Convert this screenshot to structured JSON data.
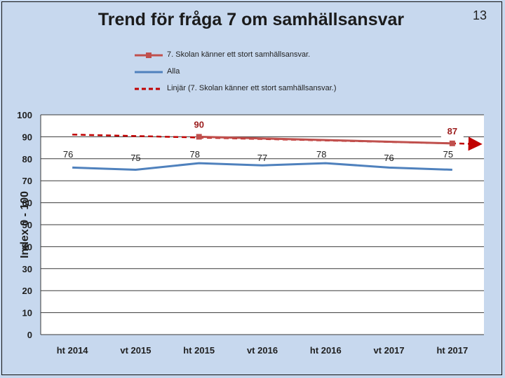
{
  "slide": {
    "title": "Trend för fråga 7 om samhällsansvar",
    "page_number": "13"
  },
  "colors": {
    "school": "#c0504d",
    "average": "#4f81bd",
    "trend": "#c00000"
  },
  "legend": [
    {
      "key": "school",
      "label": "7.   Skolan känner ett stort samhällsansvar."
    },
    {
      "key": "average",
      "label": "Alla"
    },
    {
      "key": "trend",
      "label": "Linjär (7.   Skolan känner ett stort samhällsansvar.)"
    }
  ],
  "chart_data": {
    "type": "line",
    "title": "Trend för fråga 7 om samhällsansvar",
    "xlabel": "",
    "ylabel": "Index 0 - 100",
    "ylim": [
      0,
      100
    ],
    "yticks": [
      0,
      10,
      20,
      30,
      40,
      50,
      60,
      70,
      80,
      90,
      100
    ],
    "categories": [
      "ht 2014",
      "vt 2015",
      "ht 2015",
      "vt 2016",
      "ht 2016",
      "vt 2017",
      "ht 2017"
    ],
    "series": [
      {
        "name": "7.   Skolan känner ett stort samhällsansvar.",
        "key": "school",
        "values": [
          null,
          null,
          90,
          null,
          null,
          null,
          87
        ],
        "labels": [
          "",
          "",
          "90",
          "",
          "",
          "",
          "87"
        ]
      },
      {
        "name": "Alla",
        "key": "average",
        "values": [
          76,
          75,
          78,
          77,
          78,
          76,
          75
        ],
        "labels": [
          "76",
          "75",
          "78",
          "77",
          "78",
          "76",
          "75"
        ]
      },
      {
        "name": "Linjär (7.   Skolan känner ett stort samhällsansvar.)",
        "key": "trend",
        "type": "linear-trend",
        "values": [
          91,
          90.5,
          89.5,
          89,
          88.5,
          87.5,
          87
        ]
      }
    ]
  }
}
